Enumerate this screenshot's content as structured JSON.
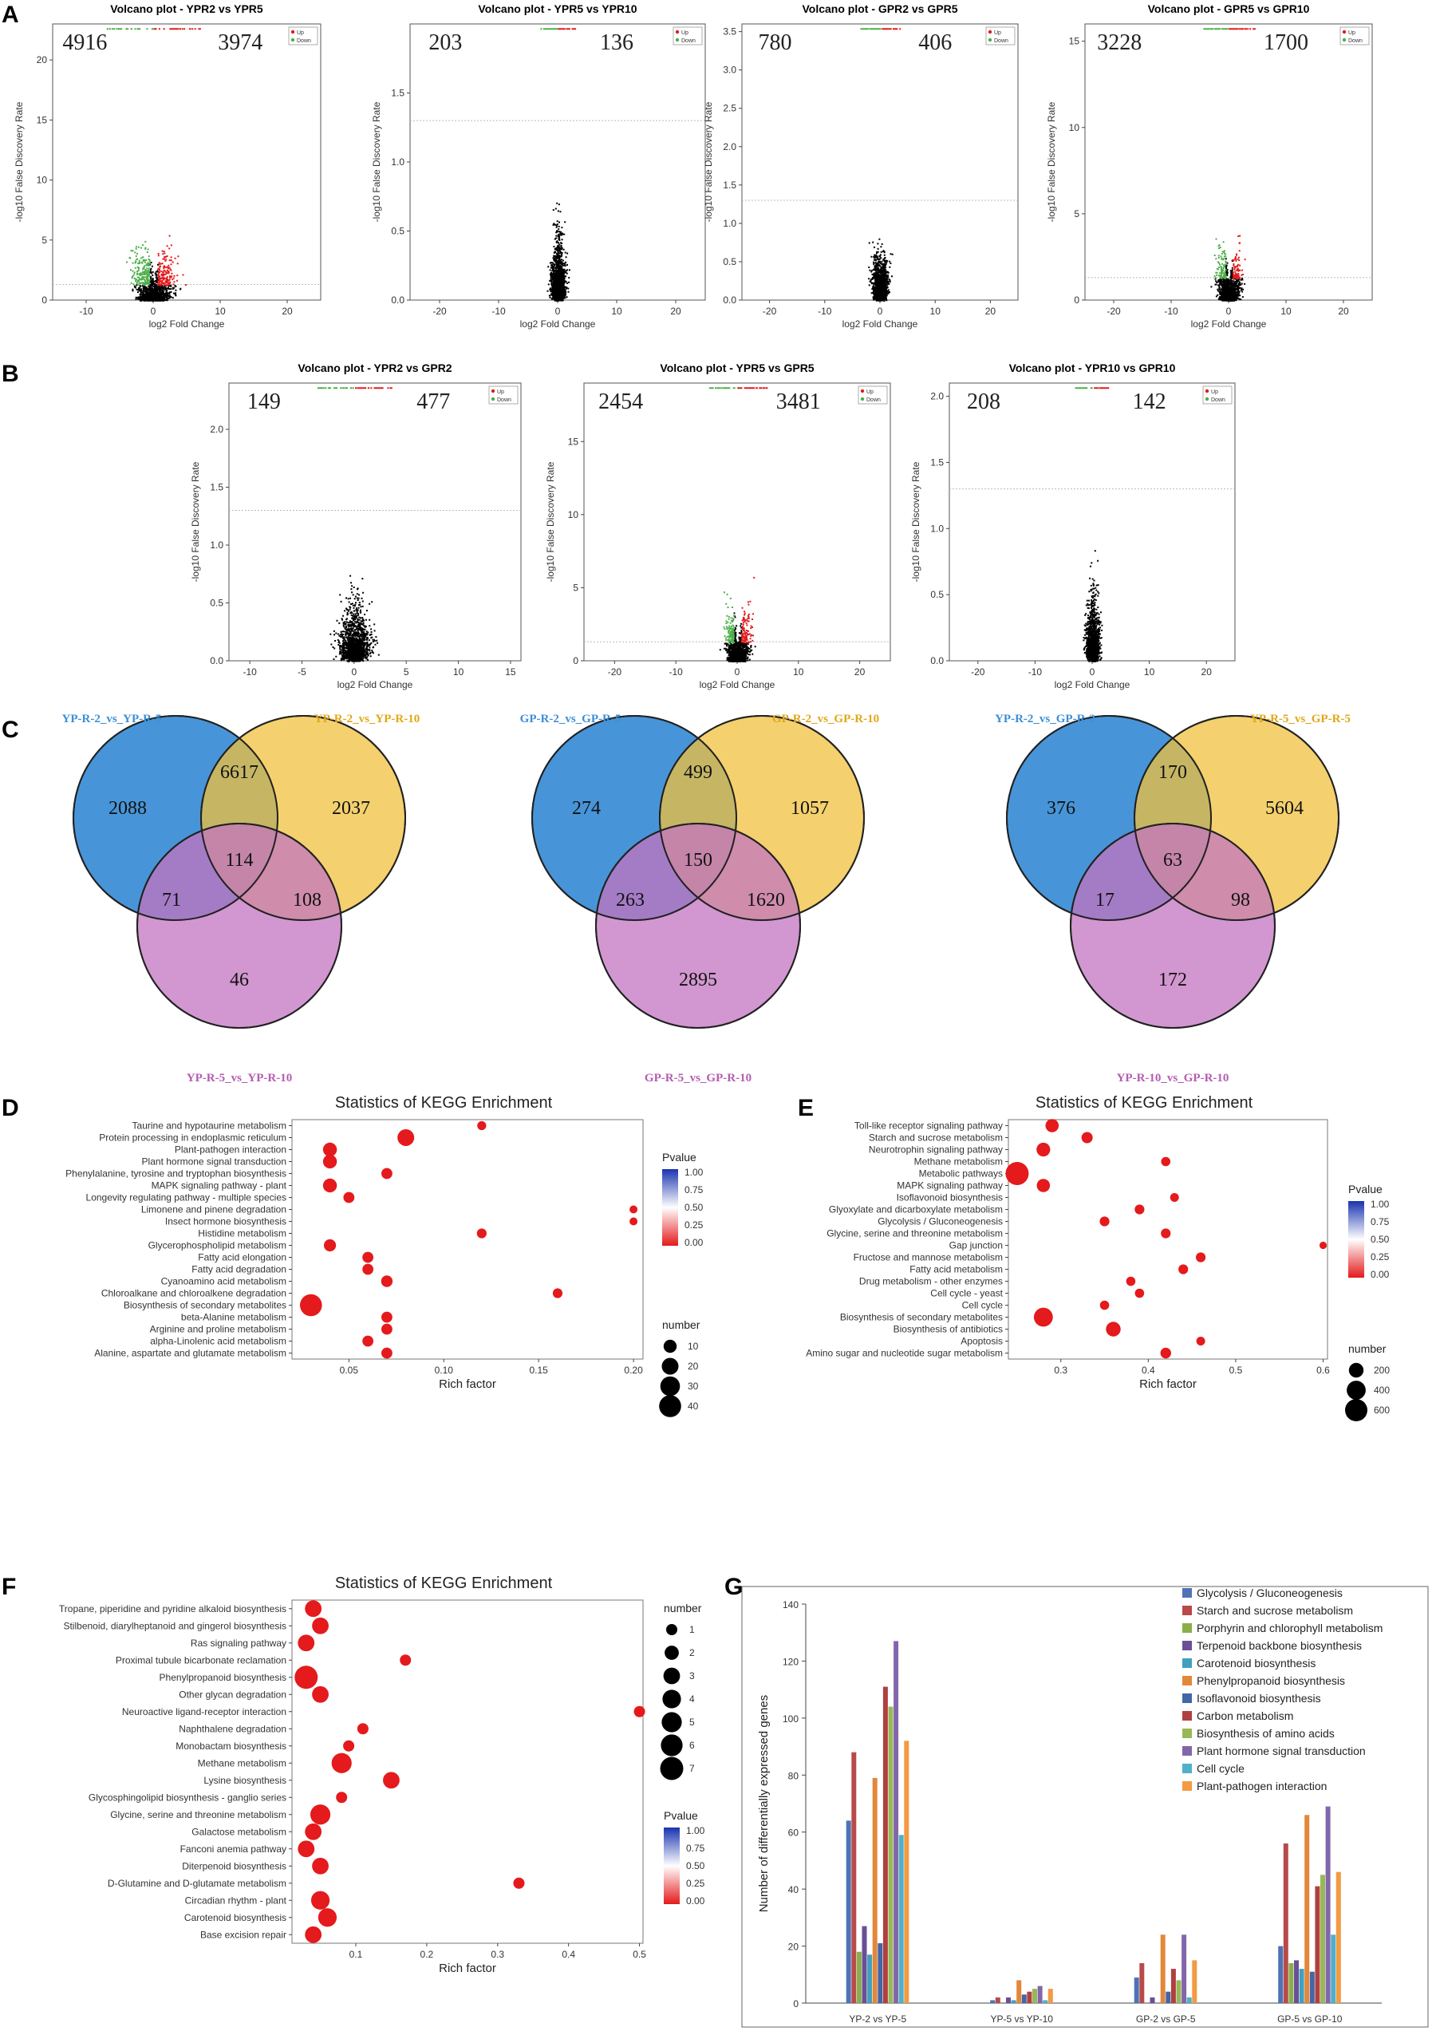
{
  "panel_labels": {
    "A": "A",
    "B": "B",
    "C": "C",
    "D": "D",
    "E": "E",
    "F": "F",
    "G": "G"
  },
  "volcano_common": {
    "xlabel": "log2 Fold Change",
    "ylabel": "-log10 False Discovery Rate",
    "legend_up": "Up",
    "legend_down": "Down"
  },
  "venn": [
    {
      "titles": [
        "YP-R-2_vs_YP-R-5",
        "YP-R-2_vs_YP-R-10",
        "YP-R-5_vs_YP-R-10"
      ],
      "counts": {
        "a_only": "2088",
        "ab": "6617",
        "b_only": "2037",
        "abc": "114",
        "ac": "71",
        "bc": "108",
        "c_only": "46"
      }
    },
    {
      "titles": [
        "GP-R-2_vs_GP-R-5",
        "GP-R-2_vs_GP-R-10",
        "GP-R-5_vs_GP-R-10"
      ],
      "counts": {
        "a_only": "274",
        "ab": "499",
        "b_only": "1057",
        "abc": "150",
        "ac": "263",
        "bc": "1620",
        "c_only": "2895"
      }
    },
    {
      "titles": [
        "YP-R-2_vs_GP-R-2",
        "YP-R-5_vs_GP-R-5",
        "YP-R-10_vs_GP-R-10"
      ],
      "counts": {
        "a_only": "376",
        "ab": "170",
        "b_only": "5604",
        "abc": "63",
        "ac": "17",
        "bc": "98",
        "c_only": "172"
      }
    }
  ],
  "venn_colors": {
    "a": "#3d8fd6",
    "b": "#f0c23d",
    "c": "#c374c0"
  },
  "colors": {
    "up": "#e41a1c",
    "down": "#4daf4a",
    "ns": "#000000",
    "pval_low": "#e41a1c",
    "pval_mid": "#ffffff",
    "pval_high": "#1a33b0"
  },
  "chart_data": [
    {
      "panel": "A",
      "type": "scatter",
      "title": "Volcano plot - YPR2 vs YPR5",
      "xlabel": "log2 Fold Change",
      "ylabel": "-log10 False Discovery Rate",
      "xlim": [
        -15,
        25
      ],
      "ylim": [
        0,
        23
      ],
      "xticks": [
        -10,
        0,
        10,
        20
      ],
      "yticks": [
        0,
        5,
        10,
        15,
        20
      ],
      "down_count": "4916",
      "up_count": "3974",
      "threshold": 1.3,
      "spread": 6,
      "ymaxcloud": 21
    },
    {
      "panel": "A",
      "type": "scatter",
      "title": "Volcano plot - YPR5 vs YPR10",
      "xlabel": "log2 Fold Change",
      "ylabel": "-log10 False Discovery Rate",
      "xlim": [
        -25,
        25
      ],
      "ylim": [
        0,
        2
      ],
      "xticks": [
        -20,
        -10,
        0,
        10,
        20
      ],
      "yticks": [
        0.0,
        0.5,
        1.0,
        1.5
      ],
      "down_count": "203",
      "up_count": "136",
      "threshold": 1.3,
      "spread": 2.5,
      "ymaxcloud": 1.9
    },
    {
      "panel": "A",
      "type": "scatter",
      "title": "Volcano plot - GPR2 vs GPR5",
      "xlabel": "log2 Fold Change",
      "ylabel": "-log10 False Discovery Rate",
      "xlim": [
        -25,
        25
      ],
      "ylim": [
        0,
        3.6
      ],
      "xticks": [
        -20,
        -10,
        0,
        10,
        20
      ],
      "yticks": [
        0.0,
        0.5,
        1.0,
        1.5,
        2.0,
        2.5,
        3.0,
        3.5
      ],
      "down_count": "780",
      "up_count": "406",
      "threshold": 1.3,
      "spread": 3,
      "ymaxcloud": 3.4
    },
    {
      "panel": "A",
      "type": "scatter",
      "title": "Volcano plot - GPR5 vs GPR10",
      "xlabel": "log2 Fold Change",
      "ylabel": "-log10 False Discovery Rate",
      "xlim": [
        -25,
        25
      ],
      "ylim": [
        0,
        16
      ],
      "xticks": [
        -20,
        -10,
        0,
        10,
        20
      ],
      "yticks": [
        0,
        5,
        10,
        15
      ],
      "down_count": "3228",
      "up_count": "1700",
      "threshold": 1.3,
      "spread": 4,
      "ymaxcloud": 15
    },
    {
      "panel": "B",
      "type": "scatter",
      "title": "Volcano plot - YPR2 vs GPR2",
      "xlabel": "log2 Fold Change",
      "ylabel": "-log10 False Discovery Rate",
      "xlim": [
        -12,
        16
      ],
      "ylim": [
        0,
        2.4
      ],
      "xticks": [
        -10,
        -5,
        0,
        5,
        10,
        15
      ],
      "yticks": [
        0.0,
        0.5,
        1.0,
        1.5,
        2.0
      ],
      "down_count": "149",
      "up_count": "477",
      "threshold": 1.3,
      "spread": 3,
      "ymaxcloud": 2.3
    },
    {
      "panel": "B",
      "type": "scatter",
      "title": "Volcano plot - YPR5 vs GPR5",
      "xlabel": "log2 Fold Change",
      "ylabel": "-log10 False Discovery Rate",
      "xlim": [
        -25,
        25
      ],
      "ylim": [
        0,
        19
      ],
      "xticks": [
        -20,
        -10,
        0,
        10,
        20
      ],
      "yticks": [
        0,
        5,
        10,
        15
      ],
      "down_count": "2454",
      "up_count": "3481",
      "threshold": 1.3,
      "spread": 4,
      "ymaxcloud": 18
    },
    {
      "panel": "B",
      "type": "scatter",
      "title": "Volcano plot - YPR10 vs GPR10",
      "xlabel": "log2 Fold Change",
      "ylabel": "-log10 False Discovery Rate",
      "xlim": [
        -25,
        25
      ],
      "ylim": [
        0,
        2.1
      ],
      "xticks": [
        -20,
        -10,
        0,
        10,
        20
      ],
      "yticks": [
        0.0,
        0.5,
        1.0,
        1.5,
        2.0
      ],
      "down_count": "208",
      "up_count": "142",
      "threshold": 1.3,
      "spread": 2.5,
      "ymaxcloud": 2.0
    },
    {
      "panel": "D",
      "type": "scatter",
      "title": "Statistics of KEGG Enrichment",
      "xlabel": "Rich factor",
      "xlim": [
        0.02,
        0.205
      ],
      "xticks": [
        0.05,
        0.1,
        0.15,
        0.2
      ],
      "pvalue_ticks": [
        "1.00",
        "0.75",
        "0.50",
        "0.25",
        "0.00"
      ],
      "pvalue_title": "Pvalue",
      "size_title": "number",
      "size_ticks": [
        10,
        20,
        30,
        40
      ],
      "size_max": 45,
      "terms": [
        "Taurine and hypotaurine metabolism",
        "Protein processing in endoplasmic reticulum",
        "Plant-pathogen interaction",
        "Plant hormone signal transduction",
        "Phenylalanine, tyrosine and tryptophan biosynthesis",
        "MAPK signaling pathway - plant",
        "Longevity regulating pathway - multiple species",
        "Limonene and pinene degradation",
        "Insect hormone biosynthesis",
        "Histidine metabolism",
        "Glycerophospholipid metabolism",
        "Fatty acid elongation",
        "Fatty acid degradation",
        "Cyanoamino acid metabolism",
        "Chloroalkane and chloroalkene degradation",
        "Biosynthesis of secondary metabolites",
        "beta-Alanine metabolism",
        "Arginine and proline metabolism",
        "alpha-Linolenic acid metabolism",
        "Alanine, aspartate and glutamate metabolism"
      ],
      "rich": [
        0.12,
        0.08,
        0.04,
        0.04,
        0.07,
        0.04,
        0.05,
        0.2,
        0.2,
        0.12,
        0.04,
        0.06,
        0.06,
        0.07,
        0.16,
        0.03,
        0.07,
        0.07,
        0.06,
        0.07
      ],
      "number": [
        3,
        20,
        12,
        12,
        6,
        12,
        6,
        2,
        2,
        4,
        8,
        6,
        6,
        7,
        4,
        40,
        6,
        6,
        6,
        6
      ],
      "pvalue": [
        0.05,
        0.02,
        0.05,
        0.05,
        0.05,
        0.05,
        0.05,
        0.05,
        0.05,
        0.05,
        0.05,
        0.05,
        0.05,
        0.05,
        0.05,
        0.02,
        0.05,
        0.05,
        0.05,
        0.05
      ]
    },
    {
      "panel": "E",
      "type": "scatter",
      "title": "Statistics of KEGG Enrichment",
      "xlabel": "Rich factor",
      "xlim": [
        0.24,
        0.605
      ],
      "xticks": [
        0.3,
        0.4,
        0.5,
        0.6
      ],
      "pvalue_ticks": [
        "1.00",
        "0.75",
        "0.50",
        "0.25",
        "0.00"
      ],
      "pvalue_title": "Pvalue",
      "size_title": "number",
      "size_ticks": [
        200,
        400,
        600
      ],
      "size_max": 650,
      "terms": [
        "Toll-like receptor signaling pathway",
        "Starch and sucrose metabolism",
        "Neurotrophin signaling pathway",
        "Methane metabolism",
        "Metabolic pathways",
        "MAPK signaling pathway",
        "Isoflavonoid biosynthesis",
        "Glyoxylate and dicarboxylate metabolism",
        "Glycolysis / Gluconeogenesis",
        "Glycine, serine and threonine metabolism",
        "Gap junction",
        "Fructose and mannose metabolism",
        "Fatty acid metabolism",
        "Drug metabolism - other enzymes",
        "Cell cycle - yeast",
        "Cell cycle",
        "Biosynthesis of secondary metabolites",
        "Biosynthesis of antibiotics",
        "Apoptosis",
        "Amino sugar and nucleotide sugar metabolism"
      ],
      "rich": [
        0.29,
        0.33,
        0.28,
        0.42,
        0.25,
        0.28,
        0.43,
        0.39,
        0.35,
        0.42,
        0.6,
        0.46,
        0.44,
        0.38,
        0.39,
        0.35,
        0.28,
        0.36,
        0.46,
        0.42
      ],
      "number": [
        150,
        90,
        170,
        50,
        650,
        150,
        40,
        60,
        60,
        60,
        20,
        60,
        60,
        50,
        50,
        50,
        400,
        200,
        40,
        80
      ],
      "pvalue": [
        0.03,
        0.03,
        0.03,
        0.03,
        0.02,
        0.03,
        0.03,
        0.03,
        0.03,
        0.03,
        0.03,
        0.03,
        0.03,
        0.03,
        0.03,
        0.03,
        0.02,
        0.03,
        0.03,
        0.03
      ]
    },
    {
      "panel": "F",
      "type": "scatter",
      "title": "Statistics of KEGG Enrichment",
      "xlabel": "Rich factor",
      "xlim": [
        0.01,
        0.505
      ],
      "xticks": [
        0.1,
        0.2,
        0.3,
        0.4,
        0.5
      ],
      "pvalue_ticks": [
        "1.00",
        "0.75",
        "0.50",
        "0.25",
        "0.00"
      ],
      "pvalue_title": "Pvalue",
      "size_title": "number",
      "size_ticks": [
        1,
        2,
        3,
        4,
        5,
        6,
        7
      ],
      "size_max": 7,
      "terms": [
        "Tropane, piperidine and pyridine alkaloid biosynthesis",
        "Stilbenoid, diarylheptanoid and gingerol biosynthesis",
        "Ras signaling pathway",
        "Proximal tubule bicarbonate reclamation",
        "Phenylpropanoid biosynthesis",
        "Other glycan degradation",
        "Neuroactive ligand-receptor interaction",
        "Naphthalene degradation",
        "Monobactam biosynthesis",
        "Methane metabolism",
        "Lysine biosynthesis",
        "Glycosphingolipid biosynthesis - ganglio series",
        "Glycine, serine and threonine metabolism",
        "Galactose metabolism",
        "Fanconi anemia pathway",
        "Diterpenoid biosynthesis",
        "D-Glutamine and D-glutamate metabolism",
        "Circadian rhythm - plant",
        "Carotenoid biosynthesis",
        "Base excision repair"
      ],
      "rich": [
        0.04,
        0.05,
        0.03,
        0.17,
        0.03,
        0.05,
        0.5,
        0.11,
        0.09,
        0.08,
        0.15,
        0.08,
        0.05,
        0.04,
        0.03,
        0.05,
        0.33,
        0.05,
        0.06,
        0.04
      ],
      "number": [
        3,
        3,
        3,
        1,
        7,
        3,
        1,
        1,
        1,
        5,
        3,
        1,
        5,
        3,
        3,
        3,
        1,
        4,
        4,
        3
      ],
      "pvalue": [
        0.05,
        0.05,
        0.05,
        0.05,
        0.03,
        0.05,
        0.05,
        0.05,
        0.05,
        0.04,
        0.05,
        0.05,
        0.05,
        0.05,
        0.05,
        0.05,
        0.05,
        0.05,
        0.05,
        0.05
      ]
    },
    {
      "panel": "G",
      "type": "bar",
      "ylabel": "Number of differentially expressed genes",
      "ylim": [
        0,
        140
      ],
      "yticks": [
        0,
        20,
        40,
        60,
        80,
        100,
        120,
        140
      ],
      "categories": [
        "YP-2 vs YP-5",
        "YP-5 vs YP-10",
        "GP-2 vs GP-5",
        "GP-5 vs GP-10"
      ],
      "series": [
        {
          "name": "Glycolysis / Gluconeogenesis",
          "color": "#4e72b8",
          "values": [
            64,
            1,
            9,
            20
          ]
        },
        {
          "name": "Starch and sucrose metabolism",
          "color": "#b84a4a",
          "values": [
            88,
            2,
            14,
            56
          ]
        },
        {
          "name": "Porphyrin and chlorophyll metabolism",
          "color": "#8aae4a",
          "values": [
            18,
            0,
            0,
            14
          ]
        },
        {
          "name": "Terpenoid backbone biosynthesis",
          "color": "#6a4f96",
          "values": [
            27,
            2,
            2,
            15
          ]
        },
        {
          "name": "Carotenoid biosynthesis",
          "color": "#41a0be",
          "values": [
            17,
            1,
            0,
            12
          ]
        },
        {
          "name": "Phenylpropanoid biosynthesis",
          "color": "#e3873a",
          "values": [
            79,
            8,
            24,
            66
          ]
        },
        {
          "name": "Isoflavonoid biosynthesis",
          "color": "#4465a6",
          "values": [
            21,
            3,
            4,
            11
          ]
        },
        {
          "name": "Carbon metabolism",
          "color": "#b04040",
          "values": [
            111,
            4,
            12,
            41
          ]
        },
        {
          "name": "Biosynthesis of amino acids",
          "color": "#98b858",
          "values": [
            104,
            5,
            8,
            45
          ]
        },
        {
          "name": "Plant hormone signal transduction",
          "color": "#8266aa",
          "values": [
            127,
            6,
            24,
            69
          ]
        },
        {
          "name": "Cell cycle",
          "color": "#4fb0c8",
          "values": [
            59,
            1,
            2,
            24
          ]
        },
        {
          "name": "Plant-pathogen interaction",
          "color": "#f39a43",
          "values": [
            92,
            5,
            15,
            46
          ]
        }
      ]
    }
  ]
}
